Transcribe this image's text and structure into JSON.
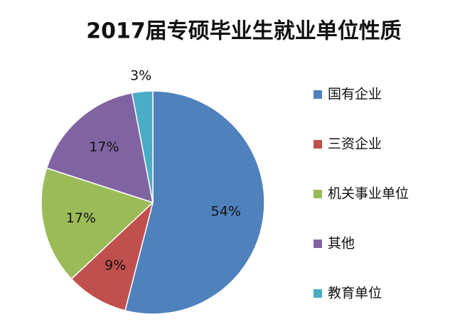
{
  "chart_data": {
    "type": "pie",
    "title": "2017届专硕毕业生就业单位性质",
    "categories": [
      "国有企业",
      "三资企业",
      "机关事业单位",
      "其他",
      "教育单位"
    ],
    "values": [
      54,
      9,
      17,
      17,
      3
    ],
    "value_labels": [
      "54%",
      "9%",
      "17%",
      "17%",
      "3%"
    ],
    "colors": [
      "#4f81bd",
      "#c0504d",
      "#9bbb59",
      "#8064a2",
      "#4bacc6"
    ],
    "legend": "right"
  }
}
